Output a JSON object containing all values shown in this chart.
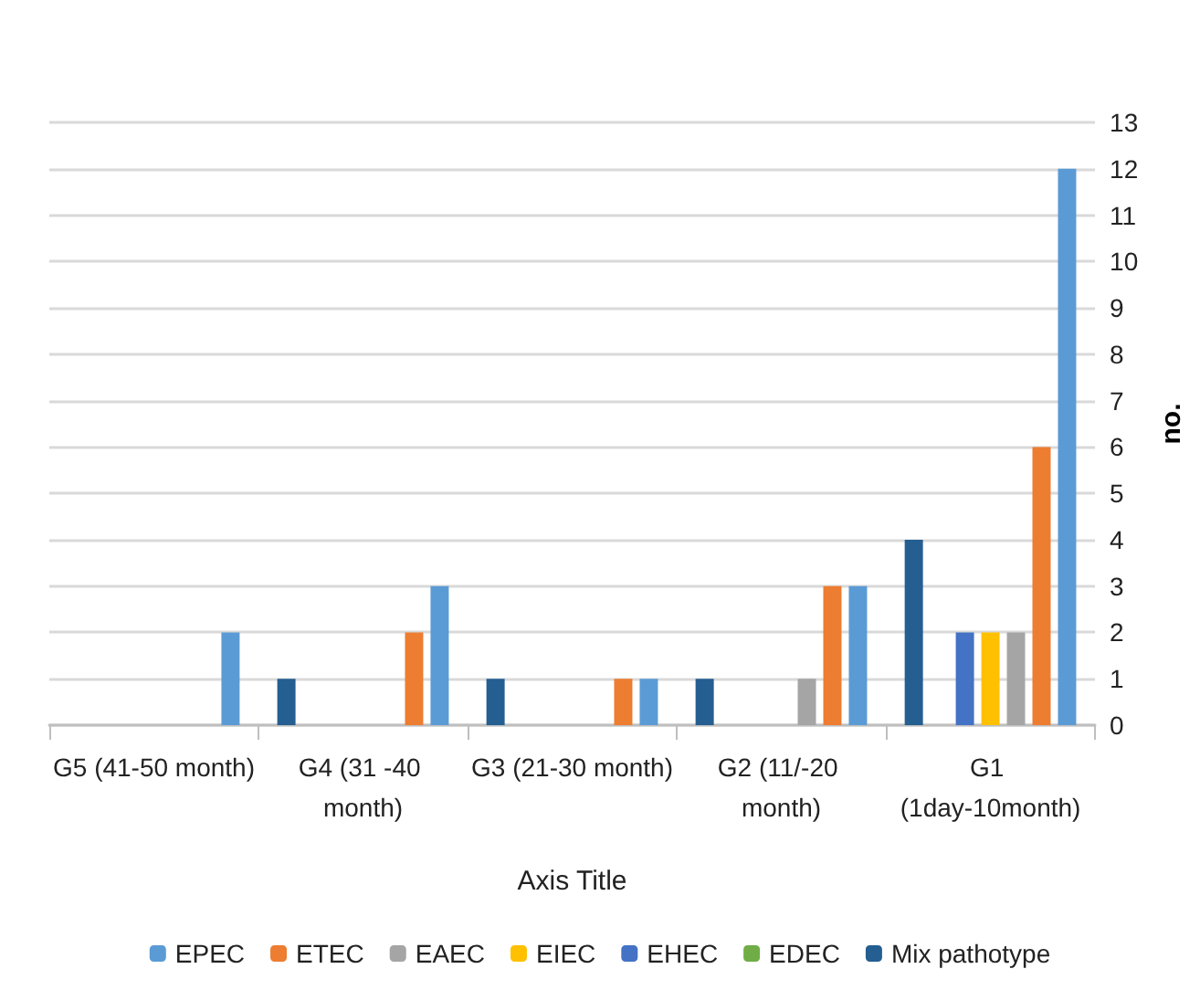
{
  "chart_data": {
    "type": "bar",
    "xlabel": "Axis Title",
    "ylabel": "no.",
    "categories": [
      "G5 (41-50 month)",
      "G4 (31 -40 month)",
      "G3 (21-30 month)",
      "G2 (11/-20 month)",
      "G1 (1day-10month)"
    ],
    "series": [
      {
        "name": "EPEC",
        "color": "#5b9bd5",
        "values": [
          2,
          3,
          1,
          3,
          12
        ]
      },
      {
        "name": "ETEC",
        "color": "#ed7d31",
        "values": [
          0,
          2,
          1,
          3,
          6
        ]
      },
      {
        "name": "EAEC",
        "color": "#a5a5a5",
        "values": [
          0,
          0,
          0,
          1,
          2
        ]
      },
      {
        "name": "EIEC",
        "color": "#ffc000",
        "values": [
          0,
          0,
          0,
          0,
          2
        ]
      },
      {
        "name": "EHEC",
        "color": "#4472c4",
        "values": [
          0,
          0,
          0,
          0,
          2
        ]
      },
      {
        "name": "EDEC",
        "color": "#70ad47",
        "values": [
          0,
          0,
          0,
          0,
          0
        ]
      },
      {
        "name": "Mix pathotype",
        "color": "#255e91",
        "values": [
          0,
          1,
          1,
          1,
          4
        ]
      }
    ],
    "ylim": [
      0,
      13
    ],
    "yticks": [
      0,
      1,
      2,
      3,
      4,
      5,
      6,
      7,
      8,
      9,
      10,
      11,
      12,
      13
    ],
    "grid": "y",
    "legend": "bottom"
  }
}
